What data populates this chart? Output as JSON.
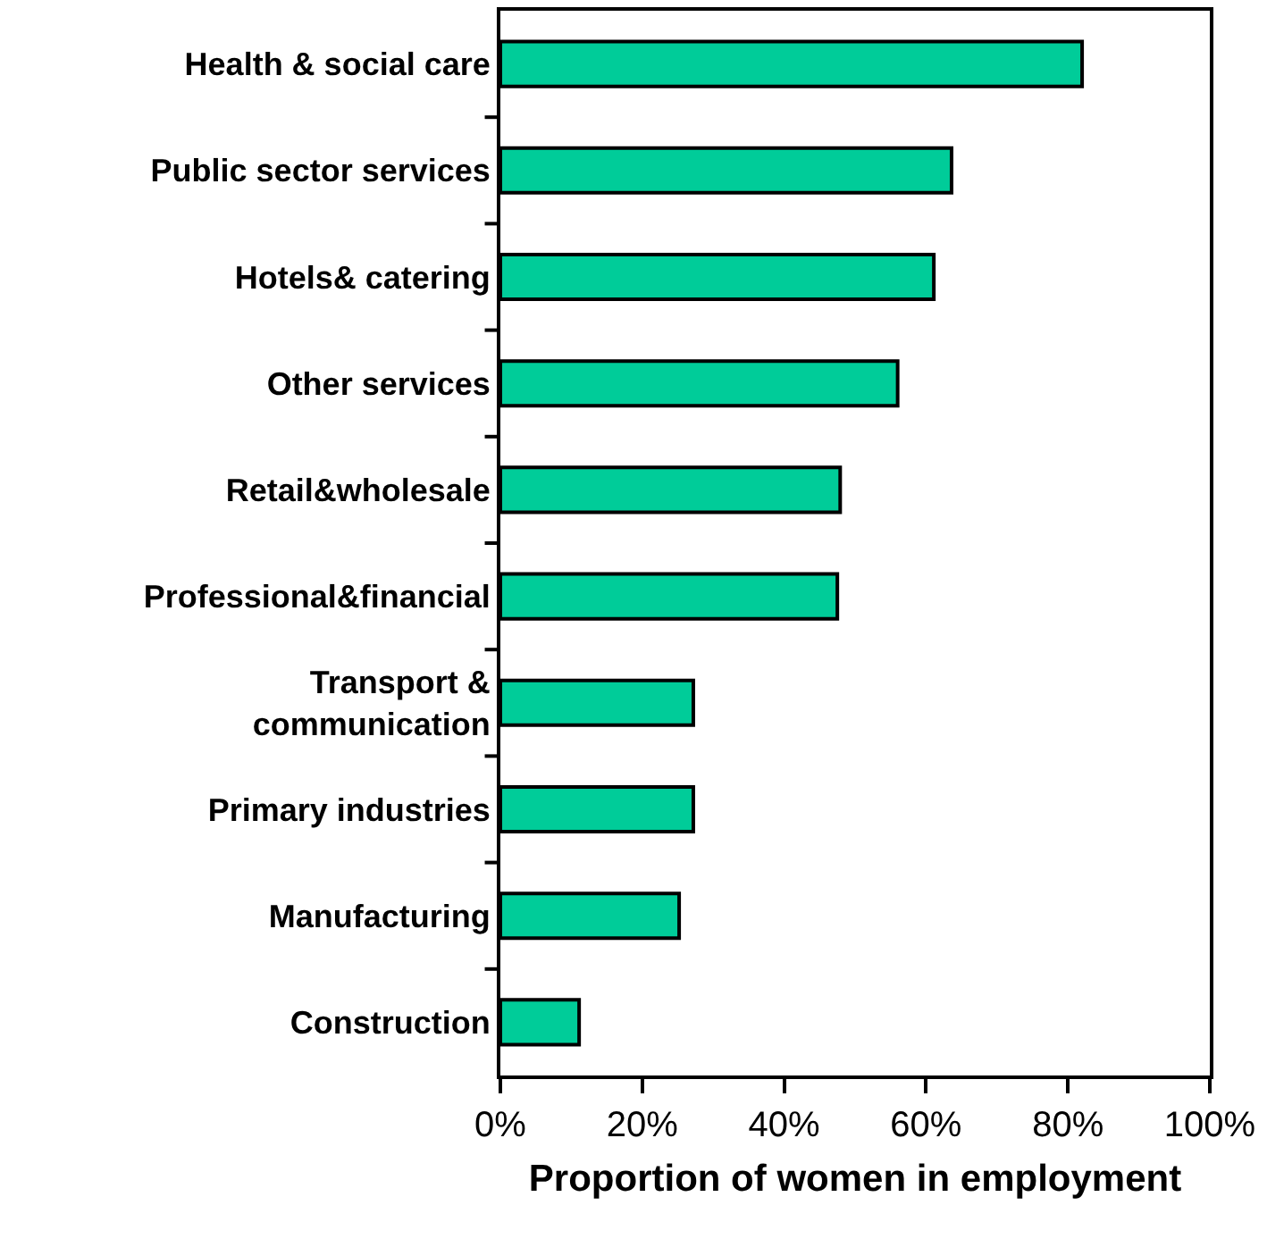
{
  "chart_data": {
    "type": "bar",
    "orientation": "horizontal",
    "xlabel": "Proportion of women in employment",
    "categories": [
      "Health & social care",
      "Public sector services",
      "Hotels& catering",
      "Other services",
      "Retail&wholesale",
      "Professional&financial",
      "Transport &\ncommunication",
      "Primary industries",
      "Manufacturing",
      "Construction"
    ],
    "values": [
      82,
      63.6,
      61.1,
      56,
      47.9,
      47.5,
      27.2,
      27.2,
      25.2,
      11.1
    ],
    "color": "#00cc99",
    "xlim": [
      0,
      100
    ],
    "xticks": [
      {
        "value": 0,
        "label": "0%"
      },
      {
        "value": 20,
        "label": "20%"
      },
      {
        "value": 40,
        "label": "40%"
      },
      {
        "value": 60,
        "label": "60%"
      },
      {
        "value": 80,
        "label": "80%"
      },
      {
        "value": 100,
        "label": "100%"
      }
    ]
  }
}
